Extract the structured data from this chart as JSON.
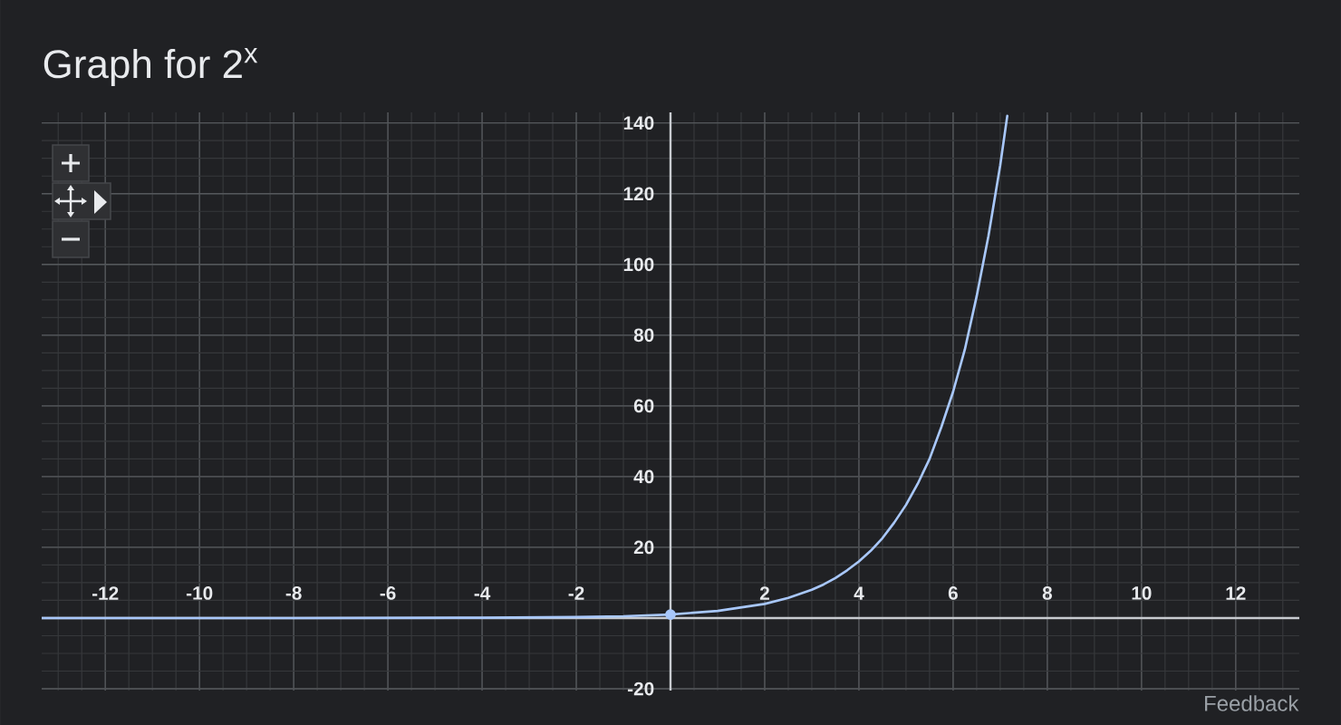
{
  "chart_data": {
    "type": "line",
    "title": "Graph for 2$^{x}$",
    "series": [
      {
        "color": "#a8c7fa",
        "x": [
          -13.35,
          -8,
          -4,
          -2,
          -1,
          0,
          1,
          2,
          2.5,
          3,
          3.25,
          3.5,
          3.75,
          4,
          4.25,
          4.5,
          4.75,
          5,
          5.25,
          5.5,
          5.75,
          6,
          6.25,
          6.5,
          6.75,
          7,
          7.15
        ],
        "values": [
          0,
          0,
          0.1,
          0.3,
          0.5,
          1,
          2,
          4,
          5.7,
          8,
          9.5,
          11.3,
          13.5,
          16,
          19,
          22.6,
          27,
          32,
          38,
          45,
          54,
          64,
          76,
          91,
          108,
          128,
          142
        ]
      },
      {
        "type": "scatter",
        "color": "#a8c7fa",
        "marker": "circle",
        "x": [
          0
        ],
        "values": [
          1
        ]
      }
    ],
    "xlim": [
      -13.35,
      13.35
    ],
    "ylim": [
      -20.5,
      143
    ],
    "xticks": [
      -12,
      -10,
      -8,
      -6,
      -4,
      -2,
      2,
      4,
      6,
      8,
      10,
      12
    ],
    "yticks": [
      -20,
      20,
      40,
      60,
      80,
      100,
      120,
      140
    ],
    "grid": true,
    "annotations": [
      "Feedback"
    ]
  }
}
